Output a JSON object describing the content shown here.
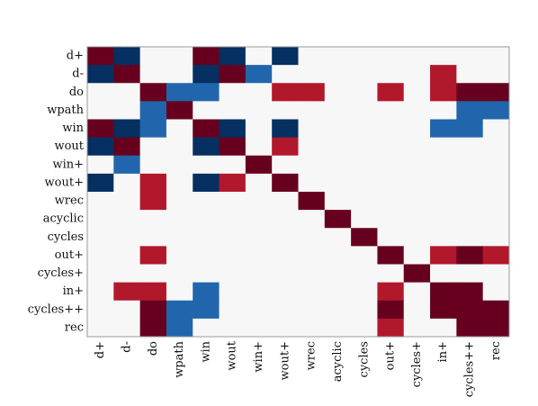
{
  "chart_data": {
    "type": "heatmap",
    "title": "",
    "xlabel": "",
    "ylabel": "",
    "labels": [
      "d+",
      "d-",
      "do",
      "wpath",
      "win",
      "wout",
      "win+",
      "wout+",
      "wrec",
      "acyclic",
      "cycles",
      "out+",
      "cycles+",
      "in+",
      "cycles++",
      "rec"
    ],
    "value_range": [
      -1,
      1
    ],
    "matrix": [
      [
        1,
        -1,
        0,
        0,
        1,
        -1,
        0,
        -1,
        0,
        0,
        0,
        0,
        0,
        0,
        0,
        0
      ],
      [
        -1,
        1,
        0,
        0,
        -1,
        1,
        -0.5,
        0,
        0,
        0,
        0,
        0,
        0,
        0.5,
        0,
        0
      ],
      [
        0,
        0,
        1,
        -0.5,
        -0.5,
        0,
        0,
        0.5,
        0.5,
        0,
        0,
        0.5,
        0,
        0.5,
        1,
        1
      ],
      [
        0,
        0,
        -0.5,
        1,
        0,
        0,
        0,
        0,
        0,
        0,
        0,
        0,
        0,
        0,
        -0.5,
        -0.5
      ],
      [
        1,
        -1,
        -0.5,
        0,
        1,
        -1,
        0,
        -1,
        0,
        0,
        0,
        0,
        0,
        -0.5,
        -0.5,
        0
      ],
      [
        -1,
        1,
        0,
        0,
        -1,
        1,
        0,
        0.5,
        0,
        0,
        0,
        0,
        0,
        0,
        0,
        0
      ],
      [
        0,
        -0.5,
        0,
        0,
        0,
        0,
        1,
        0,
        0,
        0,
        0,
        0,
        0,
        0,
        0,
        0
      ],
      [
        -1,
        0,
        0.5,
        0,
        -1,
        0.5,
        0,
        1,
        0,
        0,
        0,
        0,
        0,
        0,
        0,
        0
      ],
      [
        0,
        0,
        0.5,
        0,
        0,
        0,
        0,
        0,
        1,
        0,
        0,
        0,
        0,
        0,
        0,
        0
      ],
      [
        0,
        0,
        0,
        0,
        0,
        0,
        0,
        0,
        0,
        1,
        0,
        0,
        0,
        0,
        0,
        0
      ],
      [
        0,
        0,
        0,
        0,
        0,
        0,
        0,
        0,
        0,
        0,
        1,
        0,
        0,
        0,
        0,
        0
      ],
      [
        0,
        0,
        0.5,
        0,
        0,
        0,
        0,
        0,
        0,
        0,
        0,
        1,
        0,
        0.5,
        1,
        0.5
      ],
      [
        0,
        0,
        0,
        0,
        0,
        0,
        0,
        0,
        0,
        0,
        0,
        0,
        1,
        0,
        0,
        0
      ],
      [
        0,
        0.5,
        0.5,
        0,
        -0.5,
        0,
        0,
        0,
        0,
        0,
        0,
        0.5,
        0,
        1,
        1,
        0
      ],
      [
        0,
        0,
        1,
        -0.5,
        -0.5,
        0,
        0,
        0,
        0,
        0,
        0,
        1,
        0,
        1,
        1,
        1
      ],
      [
        0,
        0,
        1,
        -0.5,
        0,
        0,
        0,
        0,
        0,
        0,
        0,
        0.5,
        0,
        0,
        1,
        1
      ]
    ],
    "colors": {
      "strong_positive": "#67001f",
      "positive": "#b2182b",
      "neutral": "#f7f7f7",
      "negative": "#2166ac",
      "strong_negative": "#053061",
      "frame": "#9a9a9a"
    },
    "grid": false,
    "legend": "none"
  }
}
